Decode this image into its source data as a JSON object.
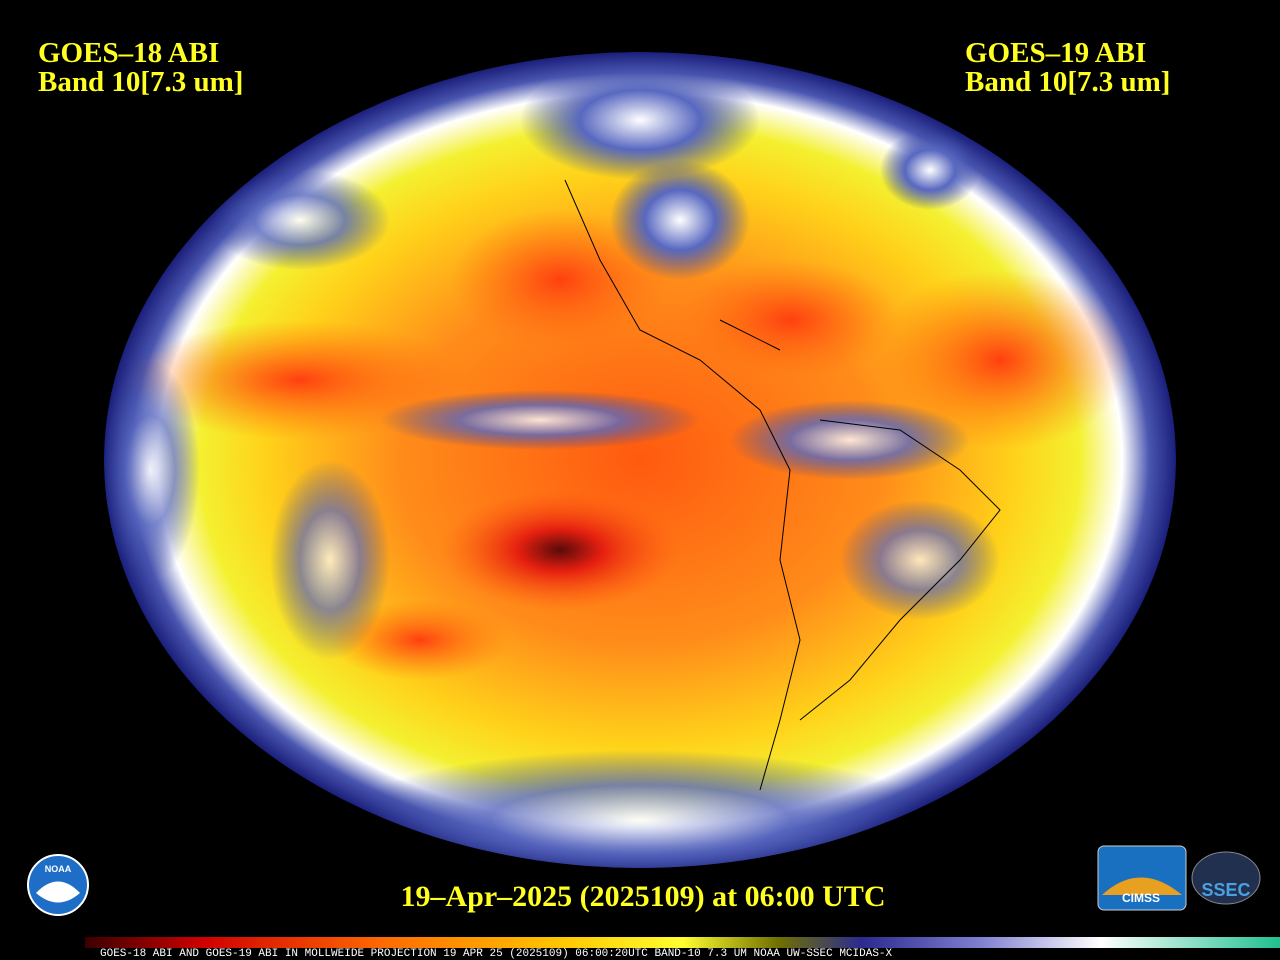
{
  "header": {
    "left": [
      "GOES–18 ABI",
      "Band 10[7.3 um]"
    ],
    "right": [
      "GOES–19 ABI",
      "Band 10[7.3 um]"
    ]
  },
  "timestamp": "19–Apr–2025 (2025109) at 06:00 UTC",
  "footer": "GOES-18 ABI AND GOES-19 ABI IN MOLLWEIDE PROJECTION 19 APR 25 (2025109) 06:00:20UTC BAND-10 7.3 UM NOAA UW-SSEC MCIDAS-X",
  "logos": [
    "NOAA",
    "CIMSS",
    "SSEC"
  ]
}
